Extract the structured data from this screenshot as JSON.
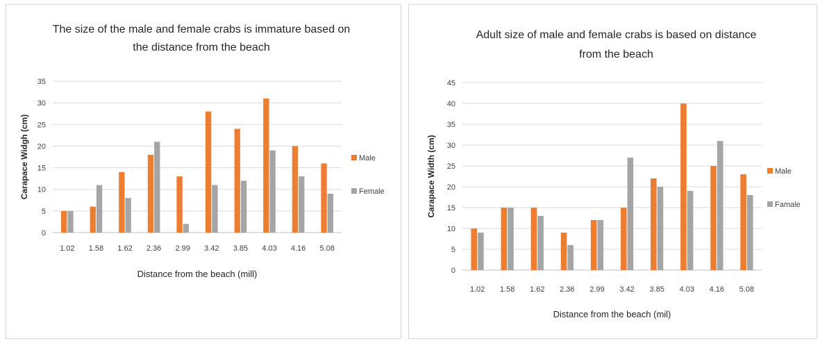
{
  "chart_data": [
    {
      "type": "bar",
      "title": [
        "The size of the male and female crabs is immature based on",
        "the distance from the beach"
      ],
      "xlabel": "Distance from the beach (mill)",
      "ylabel": "Carapace Widgh (cm)",
      "categories": [
        "1.02",
        "1.58",
        "1.62",
        "2.36",
        "2.99",
        "3.42",
        "3.85",
        "4.03",
        "4.16",
        "5.08"
      ],
      "series": [
        {
          "name": "Male",
          "color": "#ed7d31",
          "values": [
            5,
            6,
            14,
            18,
            13,
            28,
            24,
            31,
            20,
            16
          ]
        },
        {
          "name": "Female",
          "color": "#a5a5a5",
          "values": [
            5,
            11,
            8,
            21,
            2,
            11,
            12,
            19,
            13,
            9
          ]
        }
      ],
      "ylim": [
        0,
        35
      ],
      "yticks": [
        0,
        5,
        10,
        15,
        20,
        25,
        30,
        35
      ],
      "grid": true,
      "legend": "right"
    },
    {
      "type": "bar",
      "title": [
        "Adult size of male and female crabs is based on distance",
        "from the beach"
      ],
      "xlabel": "Distance from the beach (mil)",
      "ylabel": "Carapace Width (cm)",
      "categories": [
        "1.02",
        "1.58",
        "1.62",
        "2.36",
        "2.99",
        "3.42",
        "3.85",
        "4.03",
        "4.16",
        "5.08"
      ],
      "series": [
        {
          "name": "Male",
          "color": "#ed7d31",
          "values": [
            10,
            15,
            15,
            9,
            12,
            15,
            22,
            40,
            25,
            23
          ]
        },
        {
          "name": "Famale",
          "color": "#a5a5a5",
          "values": [
            9,
            15,
            13,
            6,
            12,
            27,
            20,
            19,
            31,
            18
          ]
        }
      ],
      "ylim": [
        0,
        45
      ],
      "yticks": [
        0,
        5,
        10,
        15,
        20,
        25,
        30,
        35,
        40,
        45
      ],
      "grid": true,
      "legend": "right"
    }
  ]
}
